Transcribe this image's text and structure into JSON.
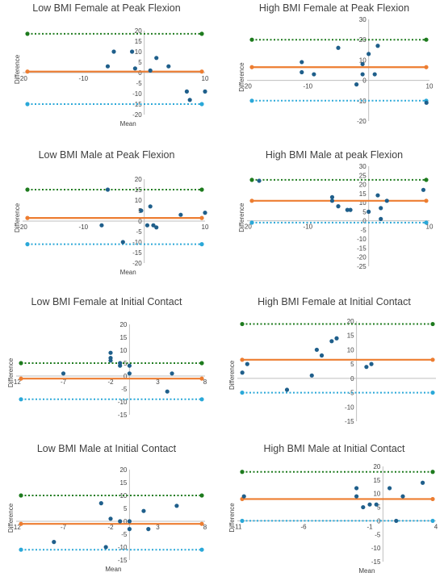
{
  "colors": {
    "point": "#1f5f8b",
    "mean_line": "#ed7d31",
    "upper_loa": "#1e7b1e",
    "lower_loa": "#2aa8d8",
    "axis": "#bfbfbf",
    "text": "#404040"
  },
  "chart_data": [
    {
      "type": "scatter",
      "title": "Low BMI Female at Peak Flexion",
      "xlabel": "Mean",
      "ylabel": "Difference",
      "xlim": [
        -20,
        10
      ],
      "ylim": [
        -20,
        20
      ],
      "x_ticks": [
        -20,
        -10,
        0,
        10
      ],
      "y_ticks": [
        -20,
        -15,
        -10,
        -5,
        0,
        5,
        10,
        15,
        20
      ],
      "x": [
        -6,
        -5,
        -2,
        -1.5,
        1,
        2,
        4,
        7,
        7.5,
        10
      ],
      "y": [
        3,
        10,
        10,
        2,
        1,
        7,
        3,
        -9,
        -13,
        -9
      ],
      "mean_line": 0.5,
      "upper_loa": 18.5,
      "lower_loa": -15
    },
    {
      "type": "scatter",
      "title": "High BMI Female at Peak Flexion",
      "xlabel": "",
      "ylabel": "Difference",
      "xlim": [
        -20,
        10
      ],
      "ylim": [
        -20,
        30
      ],
      "x_ticks": [
        -20,
        -10,
        0,
        10
      ],
      "y_ticks": [
        -20,
        -10,
        0,
        10,
        20,
        30
      ],
      "x": [
        -11,
        -11,
        -9,
        -5,
        -2,
        -1,
        -1,
        0,
        1,
        1.5,
        9.5
      ],
      "y": [
        9,
        4,
        3,
        16,
        -2,
        3,
        8,
        13,
        3,
        17,
        -11
      ],
      "mean_line": 6.5,
      "upper_loa": 20,
      "lower_loa": -10
    },
    {
      "type": "scatter",
      "title": "Low BMI Male at Peak Flexion",
      "xlabel": "Mean",
      "ylabel": "Difference",
      "xlim": [
        -20,
        10
      ],
      "ylim": [
        -20,
        20
      ],
      "x_ticks": [
        -20,
        -10,
        0,
        10
      ],
      "y_ticks": [
        -20,
        -15,
        -10,
        -5,
        0,
        5,
        10,
        15,
        20
      ],
      "x": [
        -7,
        -6,
        -3.5,
        -0.5,
        0.5,
        1,
        1.5,
        2,
        6,
        10
      ],
      "y": [
        -2,
        15,
        -10,
        5,
        -2,
        7,
        -2,
        -3,
        3,
        4
      ],
      "mean_line": 1.5,
      "upper_loa": 15,
      "lower_loa": -11
    },
    {
      "type": "scatter",
      "title": "High BMI Male at peak Flexion",
      "xlabel": "",
      "ylabel": "Difference",
      "xlim": [
        -20,
        10
      ],
      "ylim": [
        -25,
        30
      ],
      "x_ticks": [
        -20,
        -10,
        0,
        10
      ],
      "y_ticks": [
        -25,
        -20,
        -15,
        -10,
        -5,
        0,
        5,
        10,
        15,
        20,
        25,
        30
      ],
      "x": [
        -18,
        -6,
        -6,
        -5,
        -3.5,
        -3,
        0,
        1.5,
        2,
        2,
        3,
        9
      ],
      "y": [
        22,
        13,
        11,
        8,
        6,
        6,
        5,
        14,
        7,
        1,
        11,
        17
      ],
      "mean_line": 11,
      "upper_loa": 22.5,
      "lower_loa": -1
    },
    {
      "type": "scatter",
      "title": "Low BMI Female at Initial Contact",
      "xlabel": "",
      "ylabel": "Difference",
      "xlim": [
        -12,
        8
      ],
      "ylim": [
        -15,
        20
      ],
      "x_ticks": [
        -12,
        -7,
        -2,
        3,
        8
      ],
      "y_ticks": [
        -15,
        -10,
        -5,
        0,
        5,
        10,
        15,
        20
      ],
      "x": [
        -7,
        -2,
        -2,
        -2,
        -1,
        -1,
        0,
        0,
        4,
        4.5
      ],
      "y": [
        1,
        9,
        7,
        6,
        4,
        5,
        4,
        1,
        -6,
        1
      ],
      "mean_line": -1,
      "upper_loa": 5,
      "lower_loa": -9
    },
    {
      "type": "scatter",
      "title": "High BMI Female at Initial Contact",
      "xlabel": "",
      "ylabel": "Difference",
      "xlim": [
        -12,
        8
      ],
      "ylim": [
        -15,
        20
      ],
      "x_ticks": [],
      "y_ticks": [
        -15,
        -10,
        -5,
        0,
        5,
        10,
        15,
        20
      ],
      "x": [
        -11,
        -11.5,
        -7,
        -4.5,
        -4,
        -3.5,
        -2.5,
        -2,
        1,
        1.5
      ],
      "y": [
        5,
        2,
        -4,
        1,
        10,
        8,
        13,
        14,
        4,
        5
      ],
      "mean_line": 6.5,
      "upper_loa": 19,
      "lower_loa": -5
    },
    {
      "type": "scatter",
      "title": "Low BMI Male at Initial Contact",
      "xlabel": "Mean",
      "ylabel": "Difference",
      "xlim": [
        -12,
        8
      ],
      "ylim": [
        -15,
        20
      ],
      "x_ticks": [
        -12,
        -7,
        -2,
        3,
        8
      ],
      "y_ticks": [
        -15,
        -10,
        -5,
        0,
        5,
        10,
        15,
        20
      ],
      "x": [
        -8,
        -3,
        -2.5,
        -2,
        -1,
        0,
        0,
        1.5,
        2,
        5
      ],
      "y": [
        -8,
        7,
        -10,
        1,
        0,
        -3,
        0,
        4,
        -3,
        6
      ],
      "mean_line": -1,
      "upper_loa": 10,
      "lower_loa": -11
    },
    {
      "type": "scatter",
      "title": "High BMI Male at Initial Contact",
      "xlabel": "Mean",
      "ylabel": "Difference",
      "xlim": [
        -11,
        4
      ],
      "ylim": [
        -15,
        20
      ],
      "x_ticks": [
        -11,
        -6,
        -1,
        4
      ],
      "y_ticks": [
        -15,
        -10,
        -5,
        0,
        5,
        10,
        15,
        20
      ],
      "x": [
        -10.5,
        -2,
        -2,
        -1.5,
        -1,
        -0.5,
        0.5,
        1,
        1.5,
        3
      ],
      "y": [
        9,
        12,
        9,
        5,
        6,
        6,
        12,
        0,
        9,
        14
      ],
      "mean_line": 8,
      "upper_loa": 18,
      "lower_loa": 0
    }
  ]
}
